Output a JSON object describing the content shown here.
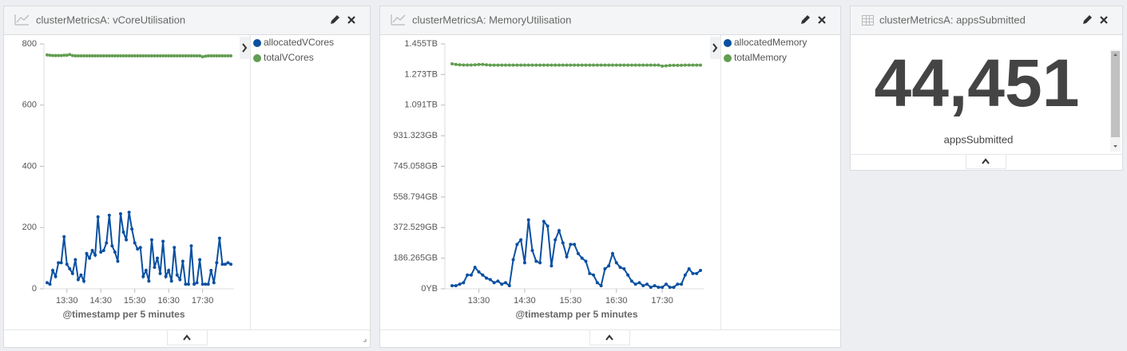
{
  "chart_data": [
    {
      "type": "line",
      "title": "clusterMetricsA: vCoreUtilisation",
      "xlabel": "@timestamp per 5 minutes",
      "categories": [
        null,
        null,
        null,
        null,
        null,
        null,
        null,
        "13:30",
        null,
        null,
        null,
        null,
        null,
        null,
        null,
        null,
        null,
        null,
        null,
        "14:30",
        null,
        null,
        null,
        null,
        null,
        null,
        null,
        null,
        null,
        null,
        null,
        "15:30",
        null,
        null,
        null,
        null,
        null,
        null,
        null,
        null,
        null,
        null,
        null,
        "16:30",
        null,
        null,
        null,
        null,
        null,
        null,
        null,
        null,
        null,
        null,
        null,
        "17:30",
        null,
        null,
        null,
        null,
        null,
        null,
        null,
        null,
        null,
        null
      ],
      "series": [
        {
          "name": "allocatedVCores",
          "color": "#0A50A1",
          "values": [
            20,
            15,
            60,
            40,
            85,
            85,
            170,
            80,
            65,
            50,
            95,
            30,
            45,
            25,
            115,
            100,
            125,
            110,
            235,
            120,
            125,
            150,
            240,
            140,
            120,
            90,
            245,
            185,
            160,
            250,
            195,
            150,
            130,
            135,
            40,
            60,
            25,
            160,
            70,
            100,
            50,
            155,
            40,
            60,
            25,
            135,
            45,
            30,
            90,
            15,
            15,
            140,
            15,
            20,
            95,
            15,
            15,
            15,
            60,
            20,
            85,
            165,
            80,
            80,
            85,
            80
          ]
        },
        {
          "name": "totalVCores",
          "color": "#629E51",
          "values": [
            764,
            763,
            762,
            762,
            762,
            762,
            763,
            763,
            765,
            762,
            761,
            761,
            761,
            761,
            761,
            761,
            761,
            761,
            761,
            761,
            761,
            761,
            761,
            761,
            761,
            761,
            761,
            761,
            761,
            761,
            761,
            761,
            761,
            761,
            761,
            761,
            761,
            761,
            761,
            761,
            761,
            761,
            761,
            761,
            761,
            761,
            761,
            761,
            761,
            761,
            761,
            761,
            761,
            761,
            761,
            758,
            760,
            761,
            761,
            761,
            761,
            761,
            761,
            761,
            761,
            761
          ]
        }
      ],
      "ylim": [
        0,
        800
      ],
      "yticks": [
        0,
        200,
        400,
        600,
        800
      ]
    },
    {
      "type": "line",
      "title": "clusterMetricsA: MemoryUtilisation",
      "xlabel": "@timestamp per 5 minutes",
      "categories": [
        null,
        null,
        null,
        null,
        null,
        null,
        null,
        "13:30",
        null,
        null,
        null,
        null,
        null,
        null,
        null,
        null,
        null,
        null,
        null,
        "14:30",
        null,
        null,
        null,
        null,
        null,
        null,
        null,
        null,
        null,
        null,
        null,
        "15:30",
        null,
        null,
        null,
        null,
        null,
        null,
        null,
        null,
        null,
        null,
        null,
        "16:30",
        null,
        null,
        null,
        null,
        null,
        null,
        null,
        null,
        null,
        null,
        null,
        "17:30",
        null,
        null,
        null,
        null,
        null,
        null,
        null,
        null,
        null,
        null
      ],
      "series": [
        {
          "name": "allocatedMemory",
          "color": "#0A50A1",
          "values": [
            20000000000.0,
            20000000000.0,
            30000000000.0,
            40000000000.0,
            90000000000.0,
            90000000000.0,
            140000000000.0,
            110000000000.0,
            90000000000.0,
            70000000000.0,
            60000000000.0,
            40000000000.0,
            50000000000.0,
            30000000000.0,
            40000000000.0,
            20000000000.0,
            190000000000.0,
            290000000000.0,
            320000000000.0,
            170000000000.0,
            450000000000.0,
            250000000000.0,
            180000000000.0,
            170000000000.0,
            440000000000.0,
            410000000000.0,
            150000000000.0,
            320000000000.0,
            380000000000.0,
            300000000000.0,
            210000000000.0,
            290000000000.0,
            290000000000.0,
            230000000000.0,
            200000000000.0,
            180000000000.0,
            100000000000.0,
            90000000000.0,
            40000000000.0,
            20000000000.0,
            130000000000.0,
            150000000000.0,
            230000000000.0,
            170000000000.0,
            140000000000.0,
            130000000000.0,
            90000000000.0,
            50000000000.0,
            30000000000.0,
            40000000000.0,
            20000000000.0,
            30000000000.0,
            10000000000.0,
            20000000000.0,
            10000000000.0,
            10000000000.0,
            30000000000.0,
            10000000000.0,
            10000000000.0,
            30000000000.0,
            30000000000.0,
            90000000000.0,
            130000000000.0,
            100000000000.0,
            100000000000.0,
            120000000000.0
          ]
        },
        {
          "name": "totalMemory",
          "color": "#629E51",
          "values": [
            1470000000000.0,
            1466000000000.0,
            1463000000000.0,
            1462000000000.0,
            1462000000000.0,
            1462000000000.0,
            1463000000000.0,
            1465000000000.0,
            1466000000000.0,
            1463000000000.0,
            1461000000000.0,
            1461000000000.0,
            1461000000000.0,
            1461000000000.0,
            1461000000000.0,
            1461000000000.0,
            1461000000000.0,
            1461000000000.0,
            1461000000000.0,
            1461000000000.0,
            1461000000000.0,
            1461000000000.0,
            1461000000000.0,
            1461000000000.0,
            1461000000000.0,
            1461000000000.0,
            1461000000000.0,
            1461000000000.0,
            1461000000000.0,
            1461000000000.0,
            1461000000000.0,
            1461000000000.0,
            1461000000000.0,
            1461000000000.0,
            1461000000000.0,
            1461000000000.0,
            1461000000000.0,
            1461000000000.0,
            1461000000000.0,
            1461000000000.0,
            1461000000000.0,
            1461000000000.0,
            1461000000000.0,
            1461000000000.0,
            1461000000000.0,
            1461000000000.0,
            1461000000000.0,
            1461000000000.0,
            1461000000000.0,
            1461000000000.0,
            1461000000000.0,
            1461000000000.0,
            1461000000000.0,
            1461000000000.0,
            1461000000000.0,
            1455000000000.0,
            1457000000000.0,
            1459000000000.0,
            1460000000000.0,
            1460000000000.0,
            1460000000000.0,
            1461000000000.0,
            1461000000000.0,
            1461000000000.0,
            1461000000000.0,
            1461000000000.0
          ]
        }
      ],
      "ylim": [
        0,
        1600000000000
      ],
      "yticks": [
        {
          "value": 0,
          "label": "0YB"
        },
        {
          "value": 200000000000,
          "label": "186.265GB"
        },
        {
          "value": 400000000000,
          "label": "372.529GB"
        },
        {
          "value": 600000000000,
          "label": "558.794GB"
        },
        {
          "value": 800000000000,
          "label": "745.058GB"
        },
        {
          "value": 1000000000000,
          "label": "931.323GB"
        },
        {
          "value": 1200000000000,
          "label": "1.091TB"
        },
        {
          "value": 1400000000000,
          "label": "1.273TB"
        },
        {
          "value": 1600000000000,
          "label": "1.455TB"
        }
      ]
    }
  ],
  "metric_panel": {
    "title": "clusterMetricsA: appsSubmitted",
    "value": "44,451",
    "label": "appsSubmitted"
  }
}
